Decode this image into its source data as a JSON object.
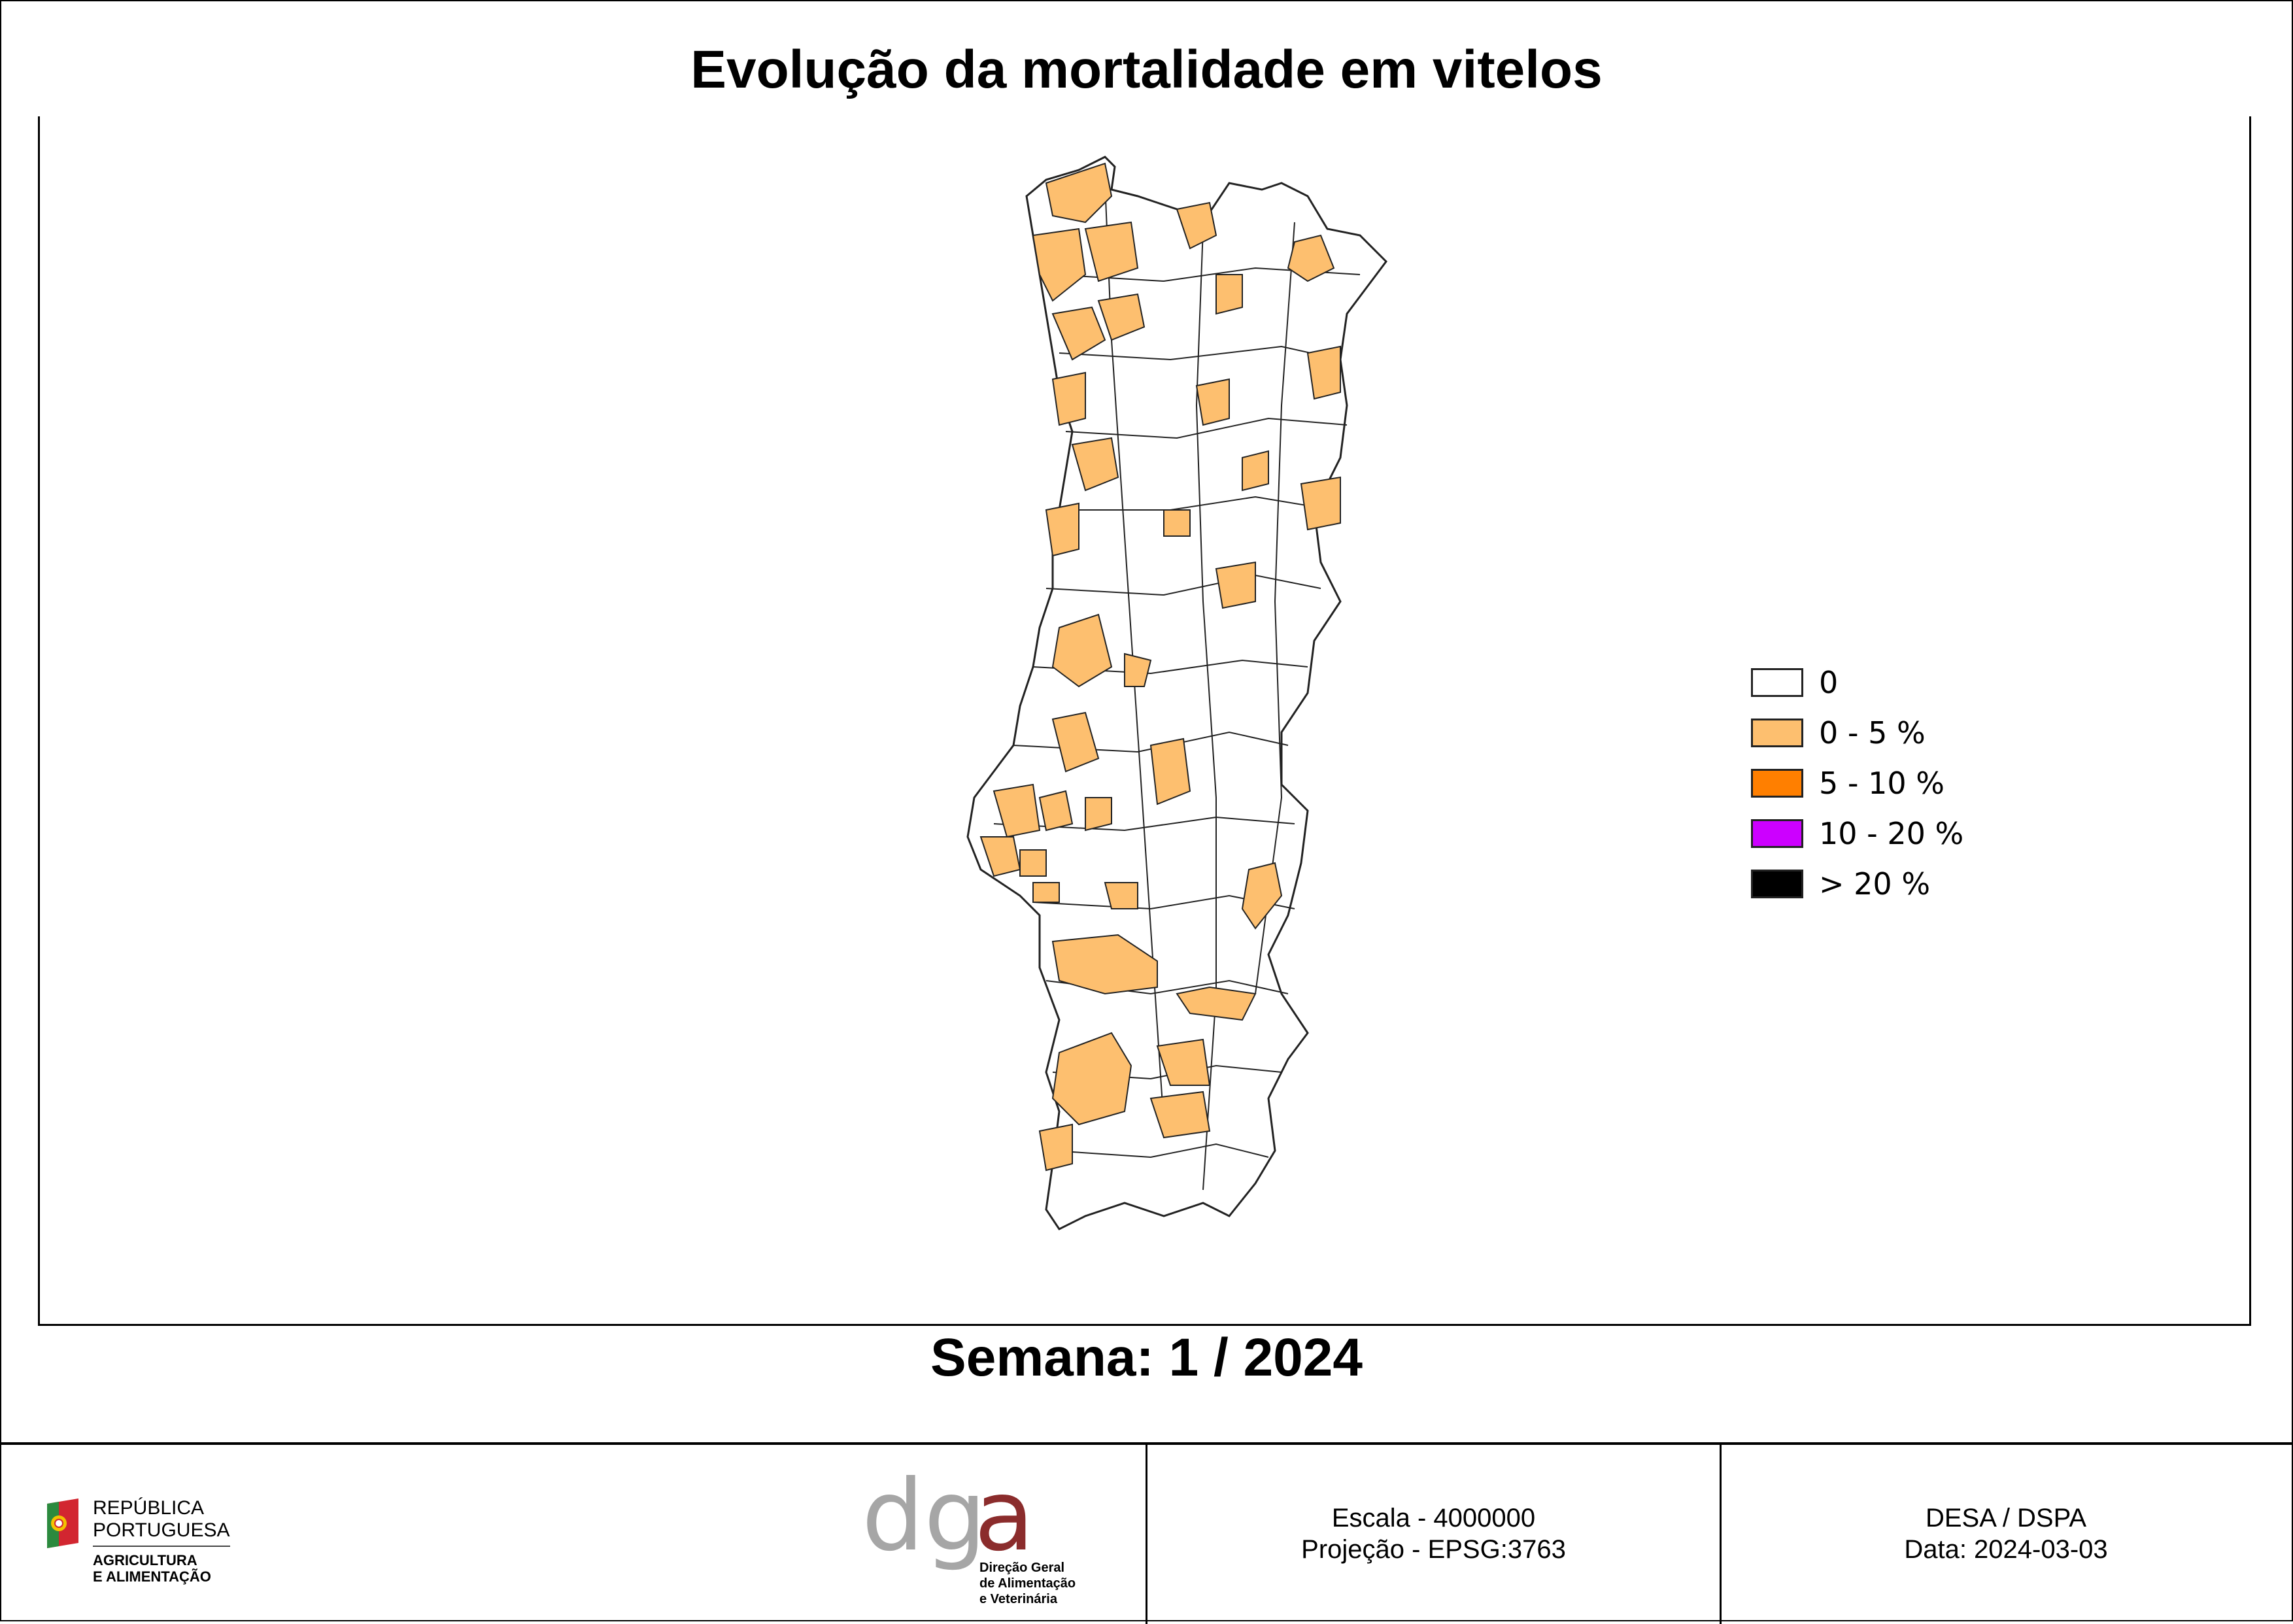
{
  "title": "Evolução da mortalidade em vitelos",
  "week_label": "Semana: 1 / 2024",
  "colors": {
    "zero": "#ffffff",
    "low": "#fdbf6f",
    "mid": "#ff7f00",
    "high": "#cc00ff",
    "very_high": "#000000",
    "border": "#222222",
    "dgav_grey": "#a6a6a6",
    "dgav_red": "#8b2c2c"
  },
  "legend": [
    {
      "label": "0",
      "color": "#ffffff"
    },
    {
      "label": "0 - 5 %",
      "color": "#fdbf6f"
    },
    {
      "label": "5 - 10 %",
      "color": "#ff7f00"
    },
    {
      "label": "10 - 20 %",
      "color": "#cc00ff"
    },
    {
      "label": "> 20 %",
      "color": "#000000"
    }
  ],
  "footer": {
    "rp_line1": "REPÚBLICA",
    "rp_line2": "PORTUGUESA",
    "rp_min1": "AGRICULTURA",
    "rp_min2": "E ALIMENTAÇÃO",
    "dgav_logo_text": "dgav",
    "dgav_sub1": "Direção Geral",
    "dgav_sub2": "de Alimentação",
    "dgav_sub3": "e Veterinária",
    "scale": "Escala - 4000000",
    "projection": "Projeção - EPSG:3763",
    "org": "DESA / DSPA",
    "date": "Data: 2024-03-03"
  }
}
